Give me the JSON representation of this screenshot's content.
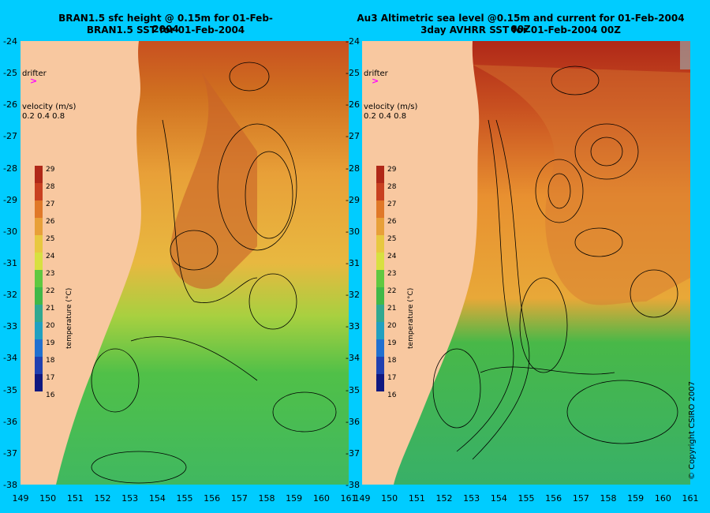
{
  "titles": {
    "left_line1": "BRAN1.5 sfc height @ 0.15m for 01-Feb-2004",
    "left_line2": "BRAN1.5 SST for 01-Feb-2004",
    "right_line1": "Au3 Altimetric sea level  @0.15m and current for 01-Feb-2004 00Z",
    "right_line2": "3day AVHRR SST for 01-Feb-2004 00Z"
  },
  "legend": {
    "drifter_label": "drifter",
    "drifter_symbol": ">",
    "drifter_color": "#ff00ff",
    "velocity_label": "velocity (m/s)",
    "velocity_values": "0.2 0.4 0.8",
    "colorbar_label": "temperature (°C)",
    "colorbar_ticks": [
      "29",
      "28",
      "27",
      "26",
      "25",
      "24",
      "23",
      "22",
      "21",
      "20",
      "19",
      "18",
      "17",
      "16"
    ]
  },
  "axes": {
    "y_ticks": [
      "-24",
      "-25",
      "-26",
      "-27",
      "-28",
      "-29",
      "-30",
      "-31",
      "-32",
      "-33",
      "-34",
      "-35",
      "-36",
      "-37",
      "-38"
    ],
    "x_ticks": [
      "149",
      "150",
      "151",
      "152",
      "153",
      "154",
      "155",
      "156",
      "157",
      "158",
      "159",
      "160",
      "161"
    ]
  },
  "copyright": "© Copyright CSIRO 2007",
  "colors": {
    "background": "#00ccff",
    "land": "#f8c8a0",
    "warm": "#b83018",
    "orange": "#e8a038",
    "yellow": "#e0e040",
    "green": "#40c040",
    "teal": "#20a890"
  },
  "chart_data": {
    "type": "heatmap",
    "x_range": [
      149,
      161
    ],
    "y_range": [
      -38,
      -24
    ],
    "colorbar_range": [
      16,
      29
    ]
  }
}
